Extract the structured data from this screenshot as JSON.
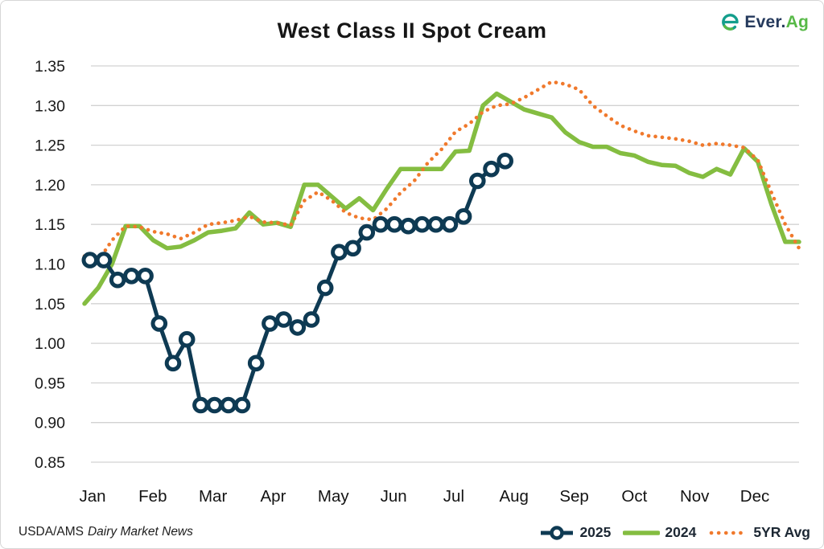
{
  "header": {
    "title": "West Class II Spot Cream",
    "logo": {
      "text_primary": "Ever.",
      "text_secondary": "Ag",
      "icon": "ever-ag-e-mark",
      "icon_teal": "#139e8c",
      "icon_green": "#57b947",
      "navy": "#24395c",
      "green": "#57b947"
    }
  },
  "footer": {
    "agency": "USDA/AMS",
    "publication": "Dairy Market News"
  },
  "chart_data": {
    "type": "line",
    "title": "West Class II Spot Cream",
    "xlabel": "",
    "ylabel": "",
    "grid": "horizontal",
    "legend_position": "bottom-right",
    "ylim": [
      0.85,
      1.35
    ],
    "y_ticks": [
      "1.35",
      "1.30",
      "1.25",
      "1.20",
      "1.15",
      "1.10",
      "1.05",
      "1.00",
      "0.95",
      "0.90",
      "0.85"
    ],
    "x_months": [
      "Jan",
      "Feb",
      "Mar",
      "Apr",
      "May",
      "Jun",
      "Jul",
      "Aug",
      "Sep",
      "Oct",
      "Nov",
      "Dec"
    ],
    "x_unit": "weeks",
    "x_weeks_total": 52,
    "gridline_color": "#d2d2d2",
    "axis_text_color": "#1a1a1a",
    "series": [
      {
        "name": "2025",
        "color": "#0e3a53",
        "style": "solid-markers",
        "marker": "open-circle",
        "w_start": 0.4,
        "w_step": 1.007,
        "values": [
          1.105,
          1.105,
          1.08,
          1.085,
          1.085,
          1.025,
          0.975,
          1.005,
          0.922,
          0.922,
          0.922,
          0.922,
          0.975,
          1.025,
          1.03,
          1.02,
          1.03,
          1.07,
          1.115,
          1.12,
          1.14,
          1.15,
          1.15,
          1.148,
          1.15,
          1.15,
          1.15,
          1.16,
          1.205,
          1.22,
          1.23
        ]
      },
      {
        "name": "2024",
        "color": "#84bd41",
        "style": "solid",
        "w_start": 0,
        "w_step": 1,
        "values": [
          1.05,
          1.07,
          1.1,
          1.148,
          1.148,
          1.13,
          1.12,
          1.122,
          1.13,
          1.14,
          1.142,
          1.145,
          1.165,
          1.15,
          1.152,
          1.147,
          1.2,
          1.2,
          1.185,
          1.17,
          1.183,
          1.168,
          1.195,
          1.22,
          1.22,
          1.22,
          1.22,
          1.242,
          1.243,
          1.3,
          1.315,
          1.305,
          1.295,
          1.29,
          1.285,
          1.266,
          1.254,
          1.248,
          1.248,
          1.24,
          1.237,
          1.229,
          1.225,
          1.224,
          1.215,
          1.21,
          1.22,
          1.213,
          1.246,
          1.229,
          1.175,
          1.128,
          1.128
        ]
      },
      {
        "name": "5YR Avg",
        "color": "#f0792c",
        "style": "dotted",
        "w_start": 0,
        "w_step": 1,
        "values": [
          1.11,
          1.104,
          1.13,
          1.148,
          1.147,
          1.141,
          1.138,
          1.132,
          1.14,
          1.15,
          1.152,
          1.155,
          1.16,
          1.153,
          1.152,
          1.149,
          1.18,
          1.191,
          1.18,
          1.165,
          1.158,
          1.156,
          1.17,
          1.19,
          1.205,
          1.228,
          1.245,
          1.267,
          1.277,
          1.292,
          1.3,
          1.302,
          1.31,
          1.32,
          1.33,
          1.327,
          1.32,
          1.3,
          1.287,
          1.275,
          1.268,
          1.262,
          1.26,
          1.258,
          1.255,
          1.25,
          1.252,
          1.25,
          1.247,
          1.231,
          1.19,
          1.15,
          1.12
        ]
      }
    ]
  }
}
